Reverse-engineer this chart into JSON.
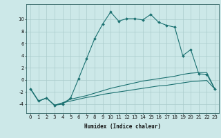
{
  "xlabel": "Humidex (Indice chaleur)",
  "xlim": [
    -0.5,
    23.5
  ],
  "ylim": [
    -5.5,
    12.5
  ],
  "yticks": [
    -4,
    -2,
    0,
    2,
    4,
    6,
    8,
    10
  ],
  "xticks": [
    0,
    1,
    2,
    3,
    4,
    5,
    6,
    7,
    8,
    9,
    10,
    11,
    12,
    13,
    14,
    15,
    16,
    17,
    18,
    19,
    20,
    21,
    22,
    23
  ],
  "bg_color": "#cce8e8",
  "grid_color": "#aacccc",
  "line_color": "#1a7070",
  "line1_x": [
    0,
    1,
    2,
    3,
    4,
    5,
    6,
    7,
    8,
    9,
    10,
    11,
    12,
    13,
    14,
    15,
    16,
    17,
    18,
    19,
    20,
    21,
    22,
    23
  ],
  "line1_y": [
    -1.5,
    -3.5,
    -3.0,
    -4.2,
    -4.0,
    -3.0,
    0.2,
    3.5,
    6.8,
    9.2,
    11.2,
    9.7,
    10.1,
    10.1,
    9.9,
    10.8,
    9.5,
    9.0,
    8.7,
    4.0,
    5.0,
    1.0,
    0.9,
    -1.5
  ],
  "line2_x": [
    0,
    1,
    2,
    3,
    4,
    5,
    6,
    7,
    8,
    9,
    10,
    11,
    12,
    13,
    14,
    15,
    16,
    17,
    18,
    19,
    20,
    21,
    22,
    23
  ],
  "line2_y": [
    -1.5,
    -3.5,
    -3.0,
    -4.2,
    -3.8,
    -3.2,
    -2.9,
    -2.6,
    -2.2,
    -1.8,
    -1.4,
    -1.1,
    -0.8,
    -0.5,
    -0.2,
    0.0,
    0.2,
    0.4,
    0.6,
    0.9,
    1.1,
    1.2,
    1.2,
    -1.5
  ],
  "line3_x": [
    0,
    1,
    2,
    3,
    4,
    5,
    6,
    7,
    8,
    9,
    10,
    11,
    12,
    13,
    14,
    15,
    16,
    17,
    18,
    19,
    20,
    21,
    22,
    23
  ],
  "line3_y": [
    -1.5,
    -3.5,
    -3.0,
    -4.2,
    -3.8,
    -3.5,
    -3.2,
    -2.9,
    -2.7,
    -2.4,
    -2.2,
    -2.0,
    -1.8,
    -1.6,
    -1.4,
    -1.2,
    -1.0,
    -0.9,
    -0.7,
    -0.5,
    -0.3,
    -0.2,
    -0.1,
    -1.5
  ],
  "xlabel_fontsize": 5.5,
  "tick_fontsize": 5.0
}
